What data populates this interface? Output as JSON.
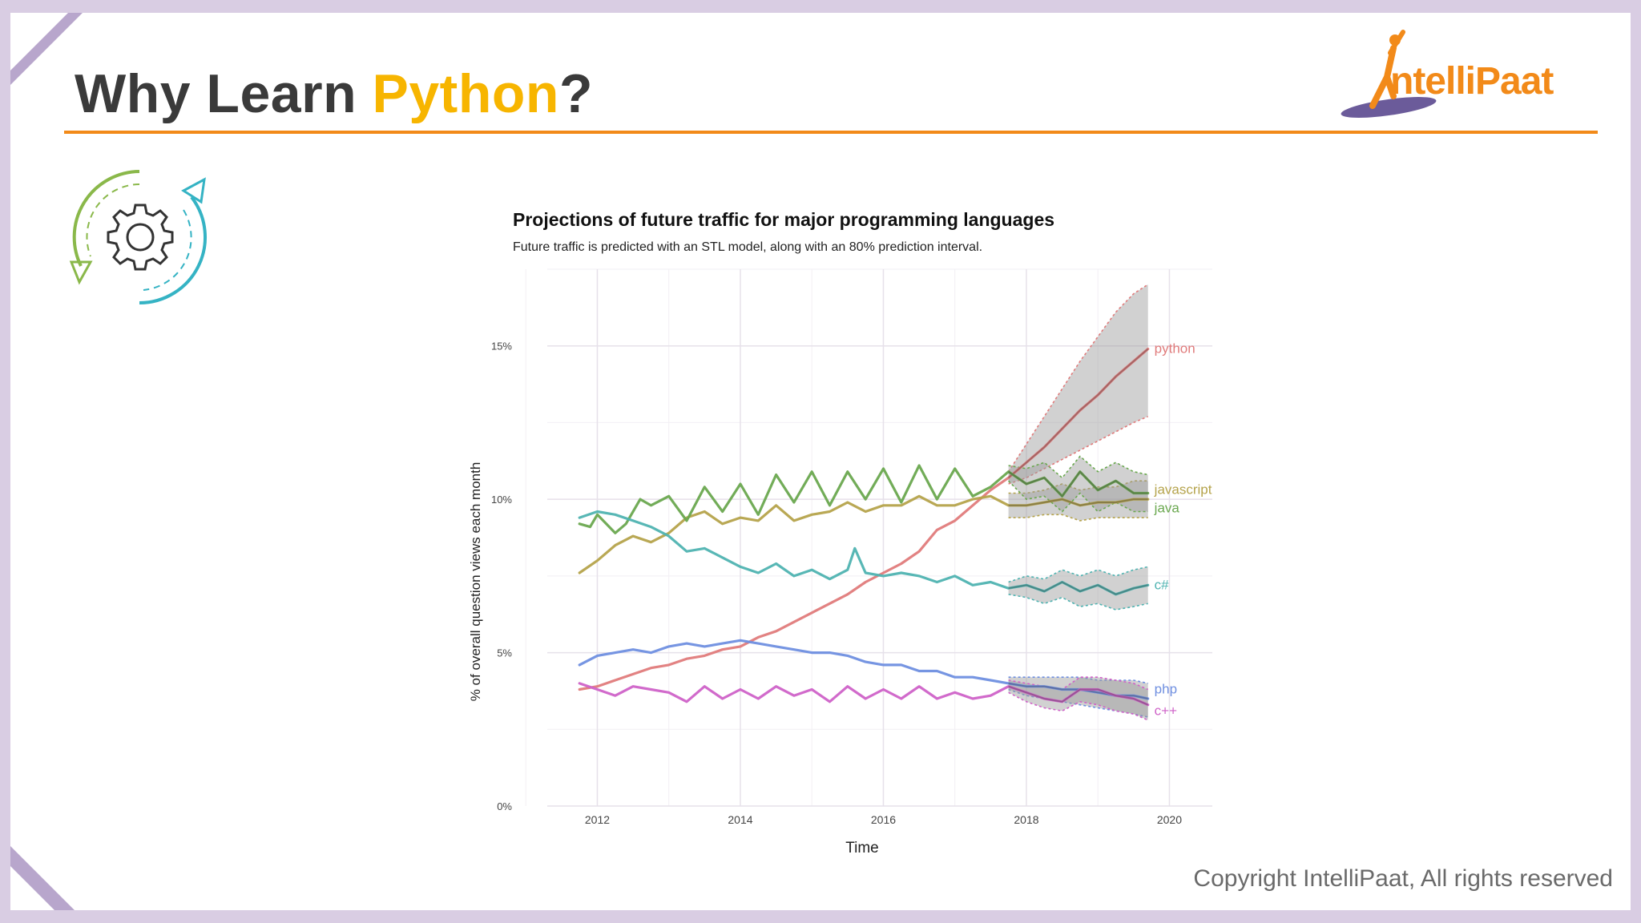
{
  "slide": {
    "title_prefix": "Why Learn ",
    "title_highlight": "Python",
    "title_suffix": "?",
    "logo_text": "ntelliPaat",
    "copyright": "Copyright IntelliPaat, All rights reserved"
  },
  "colors": {
    "accent_orange": "#f28a19",
    "highlight_yellow": "#f7b500",
    "frame_purple": "#d9cde3"
  },
  "chart_data": {
    "type": "line",
    "title": "Projections of future traffic for major programming languages",
    "subtitle": "Future traffic is predicted with an STL model, along with an 80% prediction interval.",
    "xlabel": "Time",
    "ylabel": "% of overall question views each month",
    "xlim": [
      2011.3,
      2020.6
    ],
    "ylim": [
      0,
      17.5
    ],
    "x_ticks": [
      2012,
      2014,
      2016,
      2018,
      2020
    ],
    "x_tick_labels": [
      "2012",
      "2014",
      "2016",
      "2018",
      "2020"
    ],
    "y_ticks": [
      0,
      5,
      10,
      15
    ],
    "y_tick_labels": [
      "0%",
      "5%",
      "10%",
      "15%"
    ],
    "forecast_start": 2017.7,
    "series": [
      {
        "name": "python",
        "label": "python",
        "color": "#e07b7b",
        "x": [
          2011.75,
          2012.0,
          2012.25,
          2012.5,
          2012.75,
          2013.0,
          2013.25,
          2013.5,
          2013.75,
          2014.0,
          2014.25,
          2014.5,
          2014.75,
          2015.0,
          2015.25,
          2015.5,
          2015.75,
          2016.0,
          2016.25,
          2016.5,
          2016.75,
          2017.0,
          2017.25,
          2017.5,
          2017.75,
          2018.0,
          2018.25,
          2018.5,
          2018.75,
          2019.0,
          2019.25,
          2019.5,
          2019.7
        ],
        "values": [
          3.8,
          3.9,
          4.1,
          4.3,
          4.5,
          4.6,
          4.8,
          4.9,
          5.1,
          5.2,
          5.5,
          5.7,
          6.0,
          6.3,
          6.6,
          6.9,
          7.3,
          7.6,
          7.9,
          8.3,
          9.0,
          9.3,
          9.8,
          10.3,
          10.7,
          11.2,
          11.7,
          12.3,
          12.9,
          13.4,
          14.0,
          14.5,
          14.9
        ],
        "lower": [
          null,
          null,
          null,
          null,
          null,
          null,
          null,
          null,
          null,
          null,
          null,
          null,
          null,
          null,
          null,
          null,
          null,
          null,
          null,
          null,
          null,
          null,
          null,
          null,
          10.5,
          10.7,
          11.0,
          11.3,
          11.6,
          11.9,
          12.2,
          12.5,
          12.7
        ],
        "upper": [
          null,
          null,
          null,
          null,
          null,
          null,
          null,
          null,
          null,
          null,
          null,
          null,
          null,
          null,
          null,
          null,
          null,
          null,
          null,
          null,
          null,
          null,
          null,
          null,
          10.9,
          11.8,
          12.7,
          13.6,
          14.5,
          15.3,
          16.1,
          16.7,
          17.0
        ]
      },
      {
        "name": "javascript",
        "label": "javascript",
        "color": "#b5a34b",
        "x": [
          2011.75,
          2012.0,
          2012.25,
          2012.5,
          2012.75,
          2013.0,
          2013.25,
          2013.5,
          2013.75,
          2014.0,
          2014.25,
          2014.5,
          2014.75,
          2015.0,
          2015.25,
          2015.5,
          2015.75,
          2016.0,
          2016.25,
          2016.5,
          2016.75,
          2017.0,
          2017.25,
          2017.5,
          2017.75,
          2018.0,
          2018.25,
          2018.5,
          2018.75,
          2019.0,
          2019.25,
          2019.5,
          2019.7
        ],
        "values": [
          7.6,
          8.0,
          8.5,
          8.8,
          8.6,
          8.9,
          9.4,
          9.6,
          9.2,
          9.4,
          9.3,
          9.8,
          9.3,
          9.5,
          9.6,
          9.9,
          9.6,
          9.8,
          9.8,
          10.1,
          9.8,
          9.8,
          10.0,
          10.1,
          9.8,
          9.8,
          9.9,
          10.0,
          9.8,
          9.9,
          9.9,
          10.0,
          10.0
        ],
        "lower": [
          null,
          null,
          null,
          null,
          null,
          null,
          null,
          null,
          null,
          null,
          null,
          null,
          null,
          null,
          null,
          null,
          null,
          null,
          null,
          null,
          null,
          null,
          null,
          null,
          9.4,
          9.4,
          9.5,
          9.5,
          9.3,
          9.4,
          9.4,
          9.4,
          9.4
        ],
        "upper": [
          null,
          null,
          null,
          null,
          null,
          null,
          null,
          null,
          null,
          null,
          null,
          null,
          null,
          null,
          null,
          null,
          null,
          null,
          null,
          null,
          null,
          null,
          null,
          null,
          10.2,
          10.2,
          10.3,
          10.5,
          10.3,
          10.4,
          10.4,
          10.6,
          10.6
        ]
      },
      {
        "name": "java",
        "label": "java",
        "color": "#6aa84f",
        "x": [
          2011.75,
          2011.9,
          2012.0,
          2012.25,
          2012.4,
          2012.6,
          2012.75,
          2013.0,
          2013.25,
          2013.5,
          2013.75,
          2014.0,
          2014.25,
          2014.5,
          2014.75,
          2015.0,
          2015.25,
          2015.5,
          2015.75,
          2016.0,
          2016.25,
          2016.5,
          2016.75,
          2017.0,
          2017.25,
          2017.5,
          2017.75,
          2018.0,
          2018.25,
          2018.5,
          2018.75,
          2019.0,
          2019.25,
          2019.5,
          2019.7
        ],
        "values": [
          9.2,
          9.1,
          9.5,
          8.9,
          9.2,
          10.0,
          9.8,
          10.1,
          9.3,
          10.4,
          9.6,
          10.5,
          9.5,
          10.8,
          9.9,
          10.9,
          9.8,
          10.9,
          10.0,
          11.0,
          9.9,
          11.1,
          10.0,
          11.0,
          10.1,
          10.4,
          10.9,
          10.5,
          10.7,
          10.1,
          10.9,
          10.3,
          10.6,
          10.2,
          10.2
        ],
        "lower": [
          null,
          null,
          null,
          null,
          null,
          null,
          null,
          null,
          null,
          null,
          null,
          null,
          null,
          null,
          null,
          null,
          null,
          null,
          null,
          null,
          null,
          null,
          null,
          null,
          null,
          null,
          10.6,
          10.0,
          10.1,
          9.6,
          10.2,
          9.6,
          9.9,
          9.6,
          9.6
        ],
        "upper": [
          null,
          null,
          null,
          null,
          null,
          null,
          null,
          null,
          null,
          null,
          null,
          null,
          null,
          null,
          null,
          null,
          null,
          null,
          null,
          null,
          null,
          null,
          null,
          null,
          null,
          null,
          11.1,
          11.0,
          11.2,
          10.7,
          11.4,
          10.9,
          11.2,
          10.9,
          10.8
        ]
      },
      {
        "name": "c#",
        "label": "c#",
        "color": "#4fb3b1",
        "x": [
          2011.75,
          2012.0,
          2012.25,
          2012.5,
          2012.75,
          2013.0,
          2013.25,
          2013.5,
          2013.75,
          2014.0,
          2014.25,
          2014.5,
          2014.75,
          2015.0,
          2015.25,
          2015.5,
          2015.6,
          2015.75,
          2016.0,
          2016.25,
          2016.5,
          2016.75,
          2017.0,
          2017.25,
          2017.5,
          2017.75,
          2018.0,
          2018.25,
          2018.5,
          2018.75,
          2019.0,
          2019.25,
          2019.5,
          2019.7
        ],
        "values": [
          9.4,
          9.6,
          9.5,
          9.3,
          9.1,
          8.8,
          8.3,
          8.4,
          8.1,
          7.8,
          7.6,
          7.9,
          7.5,
          7.7,
          7.4,
          7.7,
          8.4,
          7.6,
          7.5,
          7.6,
          7.5,
          7.3,
          7.5,
          7.2,
          7.3,
          7.1,
          7.2,
          7.0,
          7.3,
          7.0,
          7.2,
          6.9,
          7.1,
          7.2
        ],
        "lower": [
          null,
          null,
          null,
          null,
          null,
          null,
          null,
          null,
          null,
          null,
          null,
          null,
          null,
          null,
          null,
          null,
          null,
          null,
          null,
          null,
          null,
          null,
          null,
          null,
          null,
          6.9,
          6.8,
          6.6,
          6.8,
          6.5,
          6.6,
          6.4,
          6.5,
          6.6
        ],
        "upper": [
          null,
          null,
          null,
          null,
          null,
          null,
          null,
          null,
          null,
          null,
          null,
          null,
          null,
          null,
          null,
          null,
          null,
          null,
          null,
          null,
          null,
          null,
          null,
          null,
          null,
          7.3,
          7.5,
          7.4,
          7.7,
          7.5,
          7.7,
          7.5,
          7.7,
          7.8
        ]
      },
      {
        "name": "php",
        "label": "php",
        "color": "#6f8fe0",
        "x": [
          2011.75,
          2012.0,
          2012.25,
          2012.5,
          2012.75,
          2013.0,
          2013.25,
          2013.5,
          2013.75,
          2014.0,
          2014.25,
          2014.5,
          2014.75,
          2015.0,
          2015.25,
          2015.5,
          2015.75,
          2016.0,
          2016.25,
          2016.5,
          2016.75,
          2017.0,
          2017.25,
          2017.5,
          2017.75,
          2018.0,
          2018.25,
          2018.5,
          2018.75,
          2019.0,
          2019.25,
          2019.5,
          2019.7
        ],
        "values": [
          4.6,
          4.9,
          5.0,
          5.1,
          5.0,
          5.2,
          5.3,
          5.2,
          5.3,
          5.4,
          5.3,
          5.2,
          5.1,
          5.0,
          5.0,
          4.9,
          4.7,
          4.6,
          4.6,
          4.4,
          4.4,
          4.2,
          4.2,
          4.1,
          4.0,
          3.9,
          3.9,
          3.8,
          3.8,
          3.7,
          3.6,
          3.6,
          3.5
        ],
        "lower": [
          null,
          null,
          null,
          null,
          null,
          null,
          null,
          null,
          null,
          null,
          null,
          null,
          null,
          null,
          null,
          null,
          null,
          null,
          null,
          null,
          null,
          null,
          null,
          null,
          3.8,
          3.6,
          3.5,
          3.4,
          3.3,
          3.2,
          3.1,
          3.0,
          2.9
        ],
        "upper": [
          null,
          null,
          null,
          null,
          null,
          null,
          null,
          null,
          null,
          null,
          null,
          null,
          null,
          null,
          null,
          null,
          null,
          null,
          null,
          null,
          null,
          null,
          null,
          null,
          4.2,
          4.2,
          4.2,
          4.2,
          4.2,
          4.1,
          4.1,
          4.1,
          4.0
        ]
      },
      {
        "name": "c++",
        "label": "c++",
        "color": "#cf62c8",
        "x": [
          2011.75,
          2012.0,
          2012.25,
          2012.5,
          2012.75,
          2013.0,
          2013.25,
          2013.5,
          2013.75,
          2014.0,
          2014.25,
          2014.5,
          2014.75,
          2015.0,
          2015.25,
          2015.5,
          2015.75,
          2016.0,
          2016.25,
          2016.5,
          2016.75,
          2017.0,
          2017.25,
          2017.5,
          2017.75,
          2018.0,
          2018.25,
          2018.5,
          2018.75,
          2019.0,
          2019.25,
          2019.5,
          2019.7
        ],
        "values": [
          4.0,
          3.8,
          3.6,
          3.9,
          3.8,
          3.7,
          3.4,
          3.9,
          3.5,
          3.8,
          3.5,
          3.9,
          3.6,
          3.8,
          3.4,
          3.9,
          3.5,
          3.8,
          3.5,
          3.9,
          3.5,
          3.7,
          3.5,
          3.6,
          3.9,
          3.7,
          3.5,
          3.4,
          3.8,
          3.8,
          3.6,
          3.5,
          3.3
        ],
        "lower": [
          null,
          null,
          null,
          null,
          null,
          null,
          null,
          null,
          null,
          null,
          null,
          null,
          null,
          null,
          null,
          null,
          null,
          null,
          null,
          null,
          null,
          null,
          null,
          null,
          3.7,
          3.4,
          3.2,
          3.1,
          3.4,
          3.3,
          3.1,
          3.0,
          2.8
        ],
        "upper": [
          null,
          null,
          null,
          null,
          null,
          null,
          null,
          null,
          null,
          null,
          null,
          null,
          null,
          null,
          null,
          null,
          null,
          null,
          null,
          null,
          null,
          null,
          null,
          null,
          4.1,
          4.0,
          3.9,
          3.8,
          4.2,
          4.2,
          4.1,
          4.0,
          3.8
        ]
      }
    ]
  }
}
